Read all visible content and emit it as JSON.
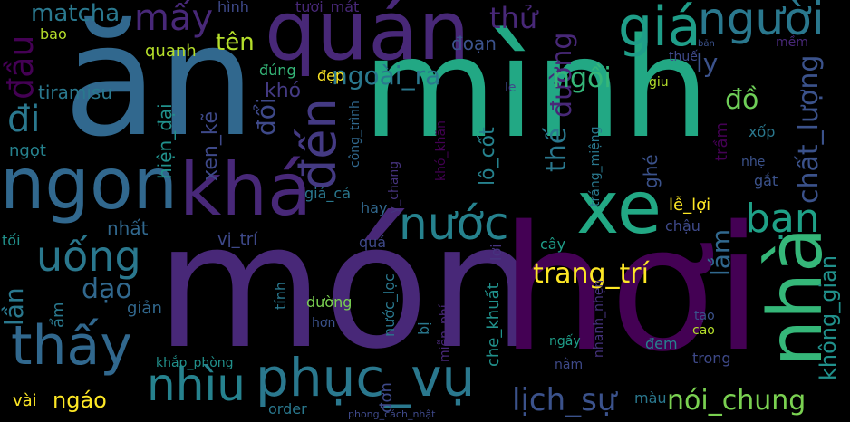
{
  "words": [
    {
      "text": "mình",
      "color": "#22a884"
    },
    {
      "text": "ăn",
      "color": "#31688e"
    },
    {
      "text": "món",
      "color": "#482878"
    },
    {
      "text": "hơi",
      "color": "#440154"
    },
    {
      "text": "quán",
      "color": "#482878"
    },
    {
      "text": "ngon",
      "color": "#31688e"
    },
    {
      "text": "khá",
      "color": "#482878"
    },
    {
      "text": "xe",
      "color": "#22a884"
    },
    {
      "text": "nhà",
      "color": "#35b779"
    },
    {
      "text": "giá",
      "color": "#1f9e89"
    },
    {
      "text": "người",
      "color": "#2a788e"
    },
    {
      "text": "phục_vụ",
      "color": "#2a788e"
    },
    {
      "text": "thấy",
      "color": "#31688e"
    },
    {
      "text": "nước",
      "color": "#26828e"
    },
    {
      "text": "nhìu",
      "color": "#26828e"
    },
    {
      "text": "bạn",
      "color": "#1fa187"
    },
    {
      "text": "uống",
      "color": "#2a788e"
    },
    {
      "text": "đến",
      "color": "#443a83"
    },
    {
      "text": "mấy",
      "color": "#482878"
    },
    {
      "text": "đi",
      "color": "#2a788e"
    },
    {
      "text": "đầu",
      "color": "#440154"
    },
    {
      "text": "matcha",
      "color": "#2a788e"
    },
    {
      "text": "trang_trí",
      "color": "#fde725"
    },
    {
      "text": "ngoài_ra",
      "color": "#2a788e"
    },
    {
      "text": "đường",
      "color": "#482878"
    },
    {
      "text": "thế",
      "color": "#2a788e"
    },
    {
      "text": "chất_lượng",
      "color": "#3b528b"
    },
    {
      "text": "không_gian",
      "color": "#21918c"
    },
    {
      "text": "lịch_sự",
      "color": "#3b528b"
    },
    {
      "text": "nói_chung",
      "color": "#7ad151"
    },
    {
      "text": "lắm",
      "color": "#31688e"
    },
    {
      "text": "tên",
      "color": "#b5de2b"
    },
    {
      "text": "ngồi",
      "color": "#35b779"
    },
    {
      "text": "đồ",
      "color": "#6ece58"
    },
    {
      "text": "ly",
      "color": "#3b528b"
    },
    {
      "text": "thử",
      "color": "#482878"
    },
    {
      "text": "dạo",
      "color": "#31688e"
    },
    {
      "text": "lần",
      "color": "#2a788e"
    },
    {
      "text": "đổi",
      "color": "#3e4989"
    },
    {
      "text": "khó",
      "color": "#443a83"
    },
    {
      "text": "xen_kẽ",
      "color": "#3e4989"
    },
    {
      "text": "hiện_đại",
      "color": "#21918c"
    },
    {
      "text": "tiramisu",
      "color": "#2a788e"
    },
    {
      "text": "ngọt",
      "color": "#26828e"
    },
    {
      "text": "bao",
      "color": "#b5de2b"
    },
    {
      "text": "quanh",
      "color": "#b5de2b"
    },
    {
      "text": "hình",
      "color": "#3e4989"
    },
    {
      "text": "tươi_mát",
      "color": "#482878"
    },
    {
      "text": "đúng",
      "color": "#35b779"
    },
    {
      "text": "đẹp",
      "color": "#fde725"
    },
    {
      "text": "đoạn",
      "color": "#3b528b"
    },
    {
      "text": "thuế",
      "color": "#3e4989"
    },
    {
      "text": "giu",
      "color": "#b5de2b"
    },
    {
      "text": "le",
      "color": "#3e4989"
    },
    {
      "text": "mềm",
      "color": "#482878"
    },
    {
      "text": "bản",
      "color": "#3b528b"
    },
    {
      "text": "công_trình",
      "color": "#31688e"
    },
    {
      "text": "tráng_miệng",
      "color": "#2a788e"
    },
    {
      "text": "lô_cốt",
      "color": "#26828e"
    },
    {
      "text": "khó_khăn",
      "color": "#440154"
    },
    {
      "text": "y_chang",
      "color": "#46337e"
    },
    {
      "text": "xốp",
      "color": "#2a788e"
    },
    {
      "text": "trầm",
      "color": "#440154"
    },
    {
      "text": "nhẹ",
      "color": "#3b528b"
    },
    {
      "text": "gắt",
      "color": "#3b528b"
    },
    {
      "text": "ghé",
      "color": "#3b528b"
    },
    {
      "text": "lễ_lợi",
      "color": "#fde725"
    },
    {
      "text": "chậu",
      "color": "#3e4989"
    },
    {
      "text": "cây",
      "color": "#1f9e89"
    },
    {
      "text": "nhất",
      "color": "#31688e"
    },
    {
      "text": "vị_trí",
      "color": "#3e4989"
    },
    {
      "text": "giá_cả",
      "color": "#2a788e"
    },
    {
      "text": "hay",
      "color": "#31688e"
    },
    {
      "text": "quá",
      "color": "#3e4989"
    },
    {
      "text": "tính",
      "color": "#2a788e"
    },
    {
      "text": "nước_lọc",
      "color": "#2a788e"
    },
    {
      "text": "lợi",
      "color": "#46337e"
    },
    {
      "text": "dường",
      "color": "#7ad151"
    },
    {
      "text": "hơn",
      "color": "#3b528b"
    },
    {
      "text": "bị",
      "color": "#2a788e"
    },
    {
      "text": "che_khuất",
      "color": "#21918c"
    },
    {
      "text": "miễn_phí",
      "color": "#482878"
    },
    {
      "text": "nhanh_nhẹn",
      "color": "#46337e"
    },
    {
      "text": "ngấy",
      "color": "#1f9e89"
    },
    {
      "text": "nằm",
      "color": "#3e4989"
    },
    {
      "text": "đem",
      "color": "#26828e"
    },
    {
      "text": "tạo",
      "color": "#3b528b"
    },
    {
      "text": "cao",
      "color": "#b5de2b"
    },
    {
      "text": "trong",
      "color": "#3e4989"
    },
    {
      "text": "tối",
      "color": "#21918c"
    },
    {
      "text": "ẩm",
      "color": "#2a788e"
    },
    {
      "text": "giản",
      "color": "#31688e"
    },
    {
      "text": "khắp_phòng",
      "color": "#21918c"
    },
    {
      "text": "vài",
      "color": "#fde725"
    },
    {
      "text": "ngáo",
      "color": "#fde725"
    },
    {
      "text": "order",
      "color": "#2a788e"
    },
    {
      "text": "đơn",
      "color": "#3e4989"
    },
    {
      "text": "màu",
      "color": "#2a788e"
    },
    {
      "text": "phong_cách_nhật",
      "color": "#3e4989"
    }
  ]
}
